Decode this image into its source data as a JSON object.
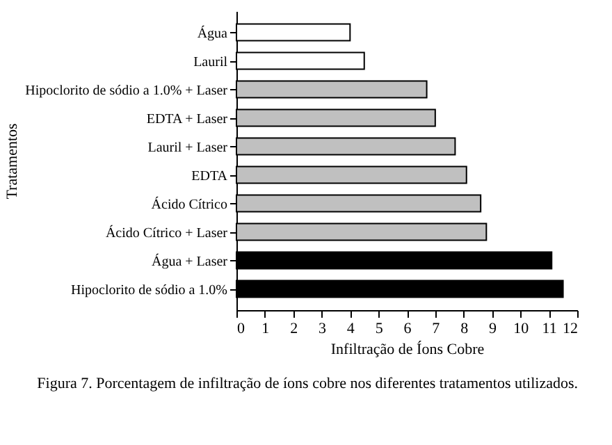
{
  "chart_data": {
    "type": "bar",
    "orientation": "horizontal",
    "xlabel": "Infiltração de Íons Cobre",
    "ylabel": "Tratamentos",
    "categories": [
      "Água",
      "Lauril",
      "Hipoclorito de sódio a 1.0% + Laser",
      "EDTA + Laser",
      "Lauril + Laser",
      "EDTA",
      "Ácido Cítrico",
      "Ácido Cítrico + Laser",
      "Água + Laser",
      "Hipoclorito de sódio a 1.0%"
    ],
    "values": [
      4.0,
      4.5,
      6.7,
      7.0,
      7.7,
      8.1,
      8.6,
      8.8,
      11.1,
      11.5
    ],
    "colors": [
      "#ffffff",
      "#ffffff",
      "#c0c0c0",
      "#c0c0c0",
      "#c0c0c0",
      "#c0c0c0",
      "#c0c0c0",
      "#c0c0c0",
      "#000000",
      "#000000"
    ],
    "xlim": [
      0,
      12
    ],
    "xticks": [
      0,
      1,
      2,
      3,
      4,
      5,
      6,
      7,
      8,
      9,
      10,
      11,
      12
    ],
    "grid": false,
    "annotations": [
      "Figura 7. Porcentagem de infiltração de íons cobre nos diferentes tratamentos utilizados."
    ]
  }
}
